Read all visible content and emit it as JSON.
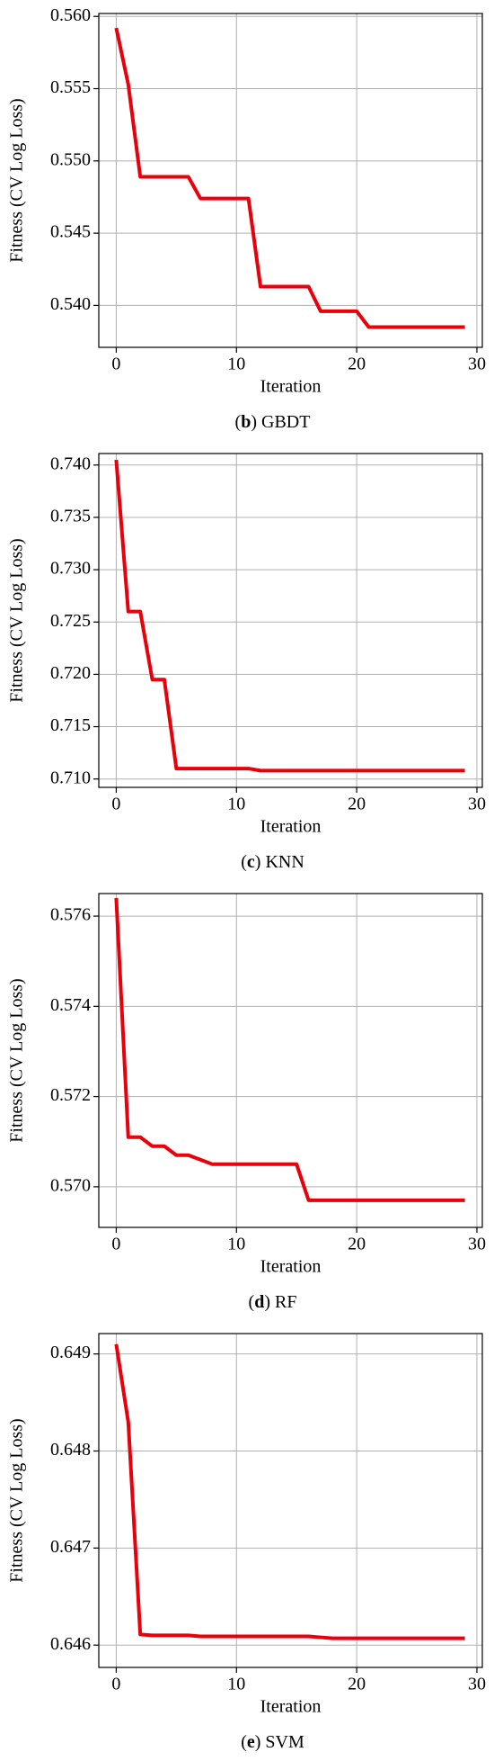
{
  "chart_data": [
    {
      "type": "line",
      "caption": [
        "(",
        "b",
        ") GBDT"
      ],
      "x_label": "Iteration",
      "y_label": "Fitness (CV Log Loss)",
      "x": [
        0,
        1,
        2,
        3,
        4,
        5,
        6,
        7,
        8,
        9,
        10,
        11,
        12,
        13,
        14,
        15,
        16,
        17,
        18,
        19,
        20,
        21,
        22,
        23,
        24,
        25,
        26,
        27,
        28,
        29
      ],
      "series": [
        {
          "color": "#e8000b",
          "values": [
            0.5592,
            0.5553,
            0.5489,
            0.5489,
            0.5489,
            0.5489,
            0.5489,
            0.5474,
            0.5474,
            0.5474,
            0.5474,
            0.5474,
            0.5413,
            0.5413,
            0.5413,
            0.5413,
            0.5413,
            0.5396,
            0.5396,
            0.5396,
            0.5396,
            0.5385,
            0.5385,
            0.5385,
            0.5385,
            0.5385,
            0.5385,
            0.5385,
            0.5385,
            0.5385
          ]
        }
      ],
      "xlim": [
        -1.45,
        30.45
      ],
      "xticks": [
        0,
        10,
        20,
        30
      ],
      "ylim": [
        0.5371,
        0.5602
      ],
      "yticks": [
        {
          "value": 0.54,
          "label": "0.540"
        },
        0.545,
        {
          "value": 0.55,
          "label": "0.550"
        },
        0.555,
        {
          "value": 0.56,
          "label": "0.560"
        }
      ],
      "grid": true
    },
    {
      "type": "line",
      "caption": [
        "(",
        "c",
        ") KNN"
      ],
      "x_label": "Iteration",
      "y_label": "Fitness (CV Log Loss)",
      "x": [
        0,
        1,
        2,
        3,
        4,
        5,
        6,
        7,
        8,
        9,
        10,
        11,
        12,
        13,
        14,
        15,
        16,
        17,
        18,
        19,
        20,
        21,
        22,
        23,
        24,
        25,
        26,
        27,
        28,
        29
      ],
      "series": [
        {
          "color": "#e8000b",
          "values": [
            0.7405,
            0.726,
            0.726,
            0.7195,
            0.7195,
            0.711,
            0.711,
            0.711,
            0.711,
            0.711,
            0.711,
            0.711,
            0.7108,
            0.7108,
            0.7108,
            0.7108,
            0.7108,
            0.7108,
            0.7108,
            0.7108,
            0.7108,
            0.7108,
            0.7108,
            0.7108,
            0.7108,
            0.7108,
            0.7108,
            0.7108,
            0.7108,
            0.7108
          ]
        }
      ],
      "xlim": [
        -1.45,
        30.45
      ],
      "xticks": [
        0,
        10,
        20,
        30
      ],
      "ylim": [
        0.7092,
        0.7411
      ],
      "yticks": [
        {
          "value": 0.71,
          "label": "0.710"
        },
        0.715,
        {
          "value": 0.72,
          "label": "0.720"
        },
        0.725,
        {
          "value": 0.73,
          "label": "0.730"
        },
        0.735,
        {
          "value": 0.74,
          "label": "0.740"
        }
      ],
      "grid": true
    },
    {
      "type": "line",
      "caption": [
        "(",
        "d",
        ") RF"
      ],
      "x_label": "Iteration",
      "y_label": "Fitness (CV Log Loss)",
      "x": [
        0,
        1,
        2,
        3,
        4,
        5,
        6,
        7,
        8,
        9,
        10,
        11,
        12,
        13,
        14,
        15,
        16,
        17,
        18,
        19,
        20,
        21,
        22,
        23,
        24,
        25,
        26,
        27,
        28,
        29
      ],
      "series": [
        {
          "color": "#e8000b",
          "values": [
            0.5764,
            0.5711,
            0.5711,
            0.5709,
            0.5709,
            0.5707,
            0.5707,
            0.5706,
            0.5705,
            0.5705,
            0.5705,
            0.5705,
            0.5705,
            0.5705,
            0.5705,
            0.5705,
            0.5697,
            0.5697,
            0.5697,
            0.5697,
            0.5697,
            0.5697,
            0.5697,
            0.5697,
            0.5697,
            0.5697,
            0.5697,
            0.5697,
            0.5697,
            0.5697
          ]
        }
      ],
      "xlim": [
        -1.45,
        30.45
      ],
      "xticks": [
        0,
        10,
        20,
        30
      ],
      "ylim": [
        0.5691,
        0.5765
      ],
      "yticks": [
        {
          "value": 0.57,
          "label": "0.570"
        },
        0.572,
        0.574,
        0.576
      ],
      "grid": true
    },
    {
      "type": "line",
      "caption": [
        "(",
        "e",
        ") SVM"
      ],
      "x_label": "Iteration",
      "y_label": "Fitness (CV Log Loss)",
      "x": [
        0,
        1,
        2,
        3,
        4,
        5,
        6,
        7,
        8,
        9,
        10,
        11,
        12,
        13,
        14,
        15,
        16,
        17,
        18,
        19,
        20,
        21,
        22,
        23,
        24,
        25,
        26,
        27,
        28,
        29
      ],
      "series": [
        {
          "color": "#e8000b",
          "values": [
            0.6491,
            0.6483,
            0.64611,
            0.6461,
            0.6461,
            0.6461,
            0.6461,
            0.64609,
            0.64609,
            0.64609,
            0.64609,
            0.64609,
            0.64609,
            0.64609,
            0.64609,
            0.64609,
            0.64609,
            0.64608,
            0.64607,
            0.64607,
            0.64607,
            0.64607,
            0.64607,
            0.64607,
            0.64607,
            0.64607,
            0.64607,
            0.64607,
            0.64607,
            0.64607
          ]
        }
      ],
      "xlim": [
        -1.45,
        30.45
      ],
      "xticks": [
        0,
        10,
        20,
        30
      ],
      "ylim": [
        0.64577,
        0.64921
      ],
      "yticks": [
        0.646,
        0.647,
        0.648,
        0.649
      ],
      "grid": true
    }
  ]
}
